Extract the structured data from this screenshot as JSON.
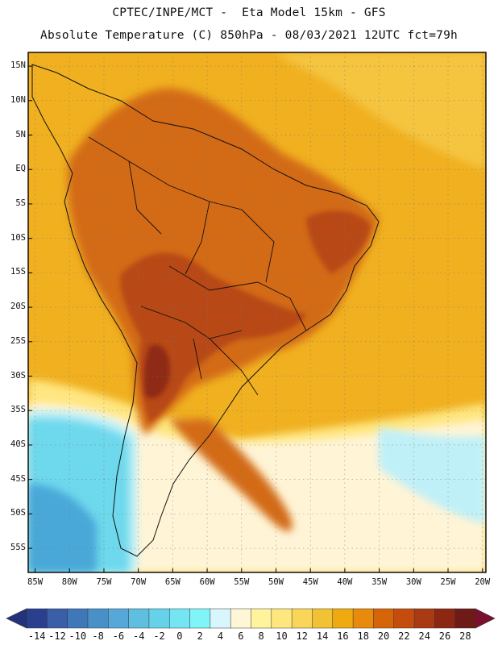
{
  "header": {
    "line1": "CPTEC/INPE/MCT -  Eta Model 15km - GFS",
    "line2": "Absolute Temperature (C) 850hPa - 08/03/2021 12UTC fct=79h"
  },
  "axes": {
    "lat_labels": [
      "15N",
      "10N",
      "5N",
      "EQ",
      "5S",
      "10S",
      "15S",
      "20S",
      "25S",
      "30S",
      "35S",
      "40S",
      "45S",
      "50S",
      "55S"
    ],
    "lon_labels": [
      "85W",
      "80W",
      "75W",
      "70W",
      "65W",
      "60W",
      "55W",
      "50W",
      "45W",
      "40W",
      "35W",
      "30W",
      "25W",
      "20W"
    ]
  },
  "colorbar": {
    "tick_labels": [
      "-14",
      "-12",
      "-10",
      "-8",
      "-6",
      "-4",
      "-2",
      "0",
      "2",
      "4",
      "6",
      "8",
      "10",
      "12",
      "14",
      "16",
      "18",
      "20",
      "22",
      "24",
      "26",
      "28"
    ],
    "colors": [
      "#2b3f8f",
      "#3a5ea8",
      "#3f78b8",
      "#4a90c8",
      "#56a8d8",
      "#5ebfe0",
      "#66d2ea",
      "#74e6f3",
      "#7ff5f8",
      "#d8f6fb",
      "#fff6d8",
      "#fff39c",
      "#ffe780",
      "#f9d65a",
      "#f2c235",
      "#eeaa10",
      "#e88a0c",
      "#d6650a",
      "#c44d0e",
      "#a93a14",
      "#8c2812",
      "#6e1a16"
    ],
    "low_arrow_color": "#23327a",
    "high_arrow_color": "#7a0f2e"
  },
  "map_colors": {
    "ocean_warm": "#f0b020",
    "ocean_mild": "#f5c540",
    "land_hot": "#d36a14",
    "land_hotter": "#b84a16",
    "land_hottest": "#8e2a18",
    "cool_yellow": "#ffe680",
    "pale": "#fff4d6",
    "cyan_light": "#bff0f8",
    "cyan": "#6ed8ec",
    "blue": "#4aa8d8"
  }
}
